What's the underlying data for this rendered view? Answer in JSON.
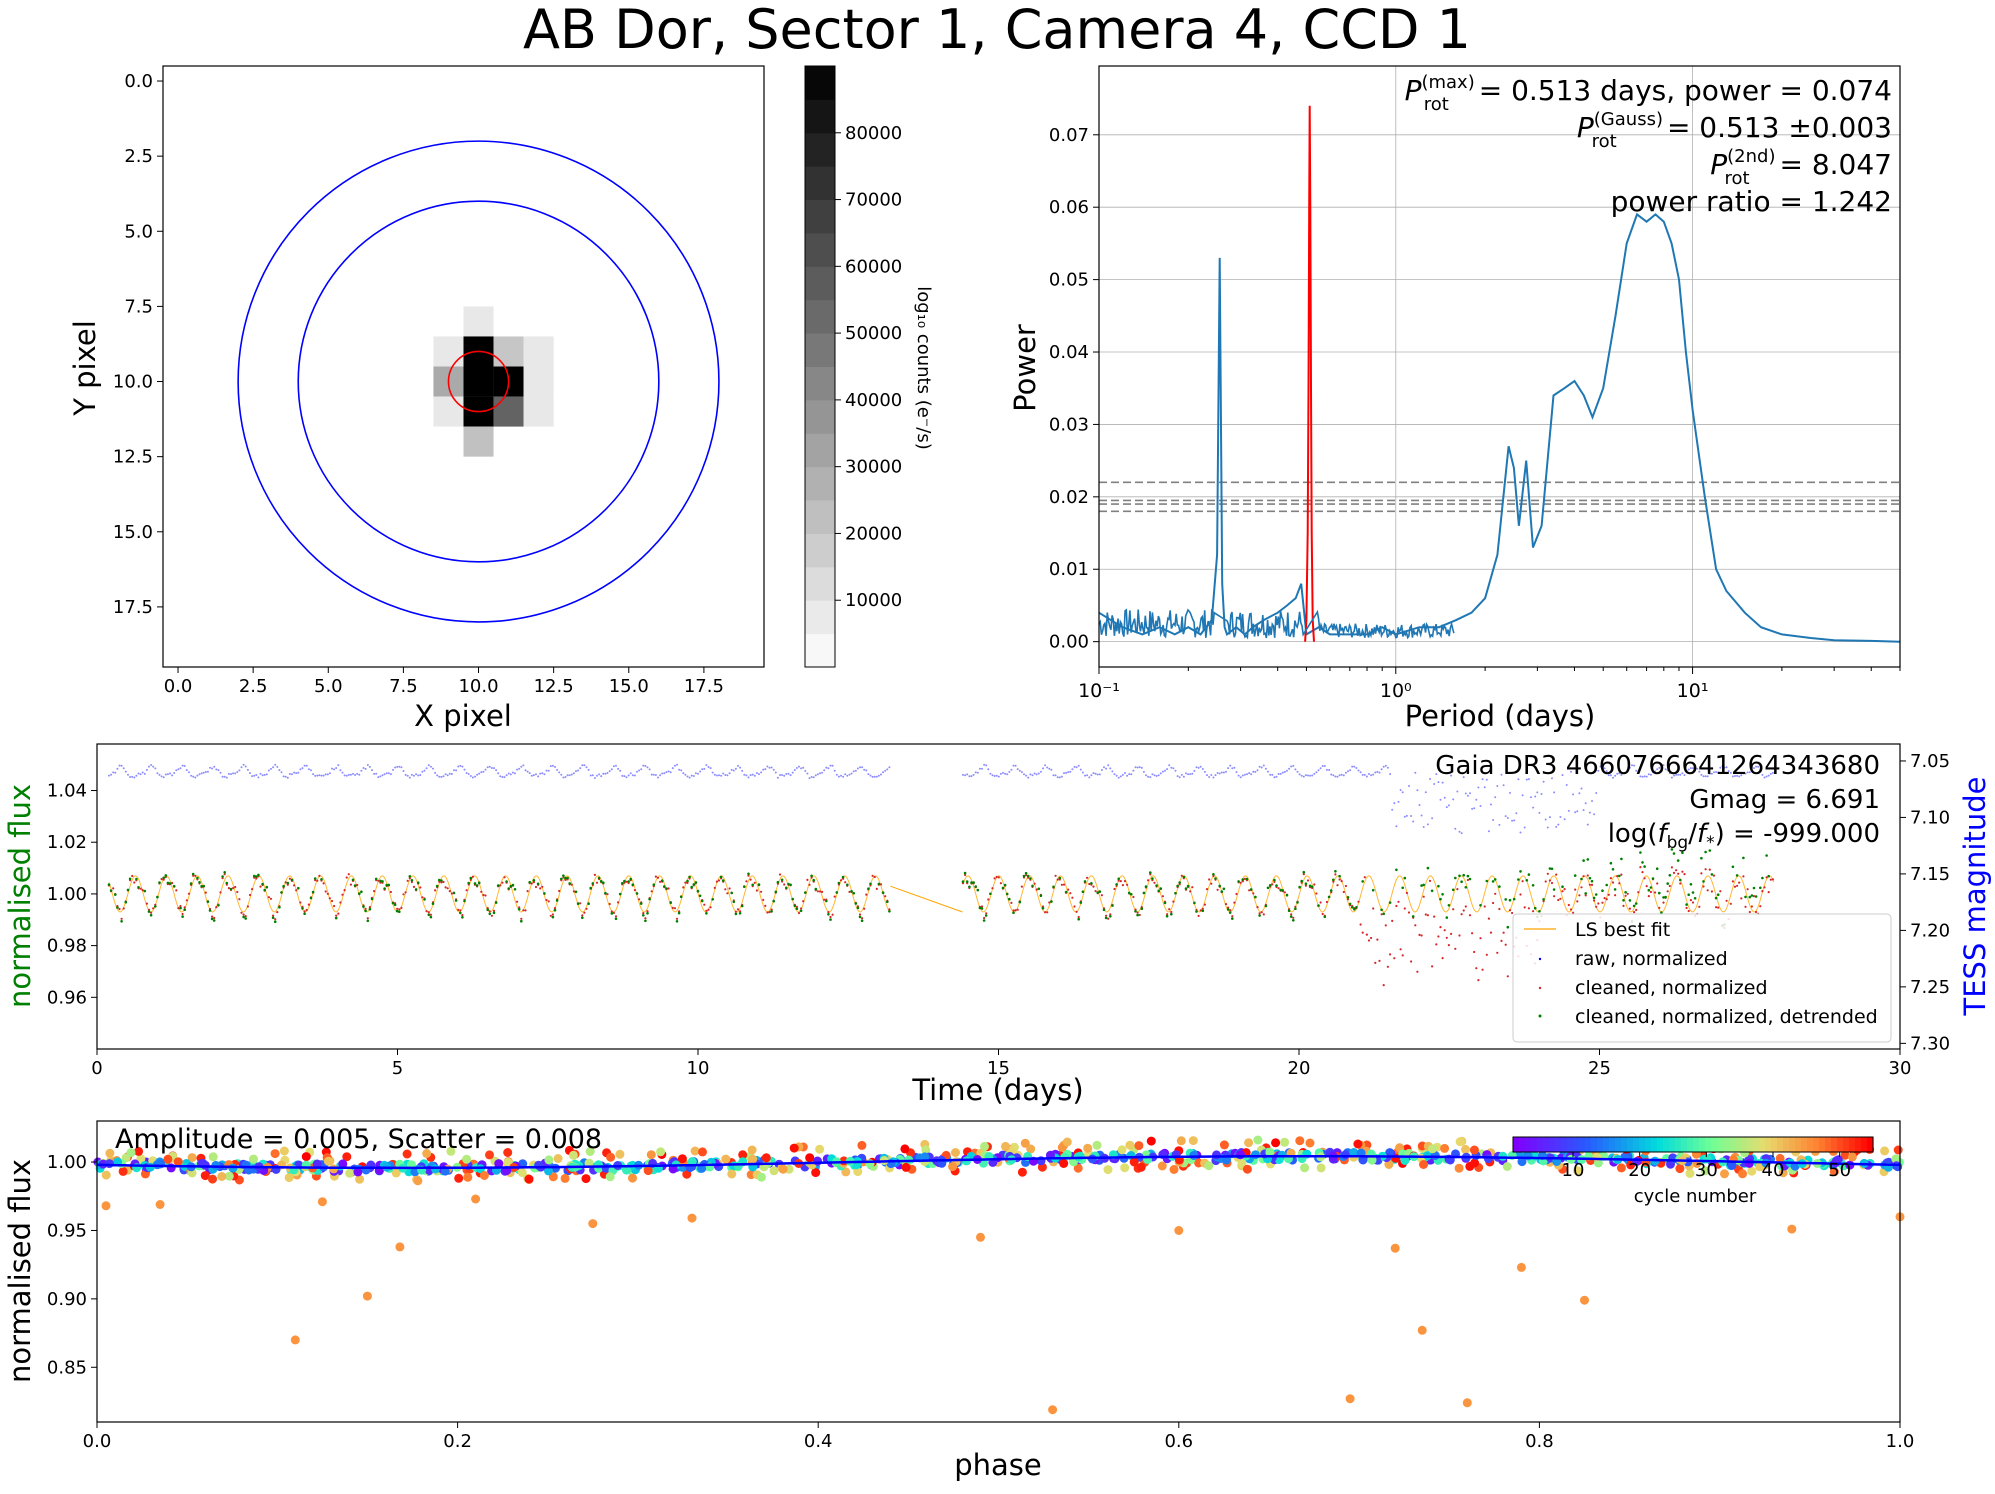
{
  "figure": {
    "title": "AB Dor, Sector 1, Camera 4, CCD 1"
  },
  "image_panel": {
    "xlabel": "X pixel",
    "ylabel": "Y pixel",
    "x_ticks": [
      "0.0",
      "2.5",
      "5.0",
      "7.5",
      "10.0",
      "12.5",
      "15.0",
      "17.5"
    ],
    "y_ticks": [
      "0.0",
      "2.5",
      "5.0",
      "7.5",
      "10.0",
      "12.5",
      "15.0",
      "17.5"
    ],
    "colorbar_label": "log₁₀ counts (e⁻/s)",
    "colorbar_ticks": [
      "10000",
      "20000",
      "30000",
      "40000",
      "50000",
      "60000",
      "70000",
      "80000"
    ],
    "aperture_color": "#ff0000",
    "annulus_color": "#0000ff"
  },
  "periodogram": {
    "xlabel": "Period (days)",
    "ylabel": "Power",
    "y_ticks": [
      "0.00",
      "0.01",
      "0.02",
      "0.03",
      "0.04",
      "0.05",
      "0.06",
      "0.07"
    ],
    "x_ticks": [
      "10⁻¹",
      "10⁰",
      "10¹"
    ],
    "annotation_lines": [
      "P_rot(max) = 0.513 days, power = 0.074",
      "P_rot(Gauss) = 0.513 ±0.003",
      "P_rot(2nd) = 8.047",
      "power ratio = 1.242"
    ]
  },
  "lightcurve": {
    "xlabel": "Time (days)",
    "ylabel_left": "normalised flux",
    "ylabel_right": "TESS magnitude",
    "x_ticks": [
      "0",
      "5",
      "10",
      "15",
      "20",
      "25",
      "30"
    ],
    "y_ticks_left": [
      "0.96",
      "0.98",
      "1.00",
      "1.02",
      "1.04"
    ],
    "y_ticks_right": [
      "7.05",
      "7.10",
      "7.15",
      "7.20",
      "7.25",
      "7.30"
    ],
    "info_lines": [
      "Gaia DR3 4660766641264343680",
      "Gmag = 6.691",
      "log(f_bg/f_*) = -999.000"
    ],
    "legend": [
      "LS best fit",
      "raw, normalized",
      "cleaned, normalized",
      "cleaned, normalized, detrended"
    ],
    "left_label_color": "#008000",
    "right_label_color": "#0000ff"
  },
  "phase_panel": {
    "xlabel": "phase",
    "ylabel": "normalised flux",
    "x_ticks": [
      "0.0",
      "0.2",
      "0.4",
      "0.6",
      "0.8",
      "1.0"
    ],
    "y_ticks": [
      "0.85",
      "0.90",
      "0.95",
      "1.00"
    ],
    "amplitude_text": "Amplitude = 0.005, Scatter = 0.008",
    "colorbar_label": "cycle number",
    "colorbar_ticks": [
      "10",
      "20",
      "30",
      "40",
      "50"
    ]
  },
  "chart_data": [
    {
      "type": "heatmap",
      "title": "",
      "xlabel": "X pixel",
      "ylabel": "Y pixel",
      "xlim": [
        -0.5,
        19.5
      ],
      "ylim": [
        19.5,
        -0.5
      ],
      "colorbar_range": [
        0,
        90000
      ],
      "pixels": [
        {
          "x": 10,
          "y": 8,
          "value": 8000
        },
        {
          "x": 9,
          "y": 9,
          "value": 8000
        },
        {
          "x": 10,
          "y": 9,
          "value": 90000
        },
        {
          "x": 11,
          "y": 9,
          "value": 20000
        },
        {
          "x": 12,
          "y": 9,
          "value": 8000
        },
        {
          "x": 9,
          "y": 10,
          "value": 30000
        },
        {
          "x": 10,
          "y": 10,
          "value": 90000
        },
        {
          "x": 11,
          "y": 10,
          "value": 90000
        },
        {
          "x": 12,
          "y": 10,
          "value": 8000
        },
        {
          "x": 9,
          "y": 11,
          "value": 8000
        },
        {
          "x": 10,
          "y": 11,
          "value": 90000
        },
        {
          "x": 11,
          "y": 11,
          "value": 55000
        },
        {
          "x": 12,
          "y": 11,
          "value": 8000
        },
        {
          "x": 10,
          "y": 12,
          "value": 22000
        }
      ],
      "aperture": {
        "center": [
          10,
          10
        ],
        "radius": 1
      },
      "annulus": {
        "center": [
          10,
          10
        ],
        "inner_radius": 6,
        "outer_radius": 8
      }
    },
    {
      "type": "line",
      "title": "",
      "xlabel": "Period (days)",
      "ylabel": "Power",
      "xscale": "log",
      "xlim": [
        0.1,
        50
      ],
      "ylim": [
        -0.0035,
        0.0795
      ],
      "grid": true,
      "series": [
        {
          "x": [
            0.1,
            0.12,
            0.14,
            0.16,
            0.18,
            0.2,
            0.22,
            0.24,
            0.25,
            0.255,
            0.26,
            0.265,
            0.27,
            0.29,
            0.31,
            0.33,
            0.36,
            0.4,
            0.43,
            0.46,
            0.48,
            0.5,
            0.55,
            0.6,
            0.7,
            0.8,
            0.9,
            1.0,
            1.2,
            1.4,
            1.6,
            1.8,
            2.0,
            2.2,
            2.4,
            2.5,
            2.6,
            2.75,
            2.9,
            3.1,
            3.4,
            3.7,
            4.0,
            4.3,
            4.6,
            5.0,
            5.5,
            6.0,
            6.5,
            7.0,
            7.5,
            8.0,
            8.5,
            9.0,
            9.5,
            10,
            11,
            12,
            13,
            15,
            17,
            20,
            25,
            30,
            40,
            50
          ],
          "values": [
            0.004,
            0.002,
            0.001,
            0.002,
            0.001,
            0.002,
            0.001,
            0.003,
            0.012,
            0.053,
            0.008,
            0.002,
            0.001,
            0.002,
            0.001,
            0.002,
            0.003,
            0.004,
            0.005,
            0.006,
            0.008,
            0.001,
            0.002,
            0.001,
            0.001,
            0.001,
            0.002,
            0.001,
            0.002,
            0.002,
            0.003,
            0.004,
            0.006,
            0.012,
            0.027,
            0.024,
            0.016,
            0.025,
            0.013,
            0.016,
            0.034,
            0.035,
            0.036,
            0.034,
            0.031,
            0.035,
            0.045,
            0.055,
            0.059,
            0.058,
            0.059,
            0.058,
            0.055,
            0.05,
            0.04,
            0.032,
            0.02,
            0.01,
            0.007,
            0.004,
            0.002,
            0.001,
            0.0005,
            0.0002,
            0.0001,
            0.0
          ],
          "color": "#1f77b4"
        },
        {
          "x": [
            0.495,
            0.5,
            0.505,
            0.508,
            0.511,
            0.513,
            0.515,
            0.518,
            0.521,
            0.525,
            0.53
          ],
          "values": [
            0.0,
            0.003,
            0.015,
            0.035,
            0.06,
            0.074,
            0.06,
            0.035,
            0.015,
            0.003,
            0.0
          ],
          "color": "#ff0000"
        }
      ],
      "hlines": [
        0.018,
        0.019,
        0.0195,
        0.022
      ]
    },
    {
      "type": "scatter",
      "title": "",
      "xlabel": "Time (days)",
      "ylabel": "normalised flux",
      "y2label": "TESS magnitude",
      "xlim": [
        0,
        30
      ],
      "ylim": [
        0.94,
        1.058
      ],
      "y2lim": [
        7.305,
        7.035
      ],
      "period_days": 0.513,
      "segments": [
        [
          0.2,
          13.2
        ],
        [
          14.4,
          27.9
        ]
      ],
      "series": [
        {
          "name": "LS best fit",
          "color": "#ffa500",
          "amplitude": 0.007
        },
        {
          "name": "raw, normalized",
          "color": "#0000ff",
          "baseline_mag": 7.06
        },
        {
          "name": "cleaned, normalized",
          "color": "#d62728",
          "amplitude": 0.008
        },
        {
          "name": "cleaned, normalized, detrended",
          "color": "#008000",
          "amplitude": 0.009
        }
      ]
    },
    {
      "type": "scatter",
      "title": "",
      "xlabel": "phase",
      "ylabel": "normalised flux",
      "xlim": [
        0,
        1
      ],
      "ylim": [
        0.81,
        1.03
      ],
      "amplitude": 0.005,
      "scatter": 0.008,
      "cycle_range": [
        1,
        55
      ],
      "outliers": [
        {
          "x": 0.005,
          "y": 0.968
        },
        {
          "x": 0.035,
          "y": 0.969
        },
        {
          "x": 0.11,
          "y": 0.87
        },
        {
          "x": 0.125,
          "y": 0.971
        },
        {
          "x": 0.15,
          "y": 0.902
        },
        {
          "x": 0.168,
          "y": 0.938
        },
        {
          "x": 0.21,
          "y": 0.973
        },
        {
          "x": 0.275,
          "y": 0.955
        },
        {
          "x": 0.33,
          "y": 0.959
        },
        {
          "x": 0.49,
          "y": 0.945
        },
        {
          "x": 0.53,
          "y": 0.819
        },
        {
          "x": 0.6,
          "y": 0.95
        },
        {
          "x": 0.695,
          "y": 0.827
        },
        {
          "x": 0.72,
          "y": 0.937
        },
        {
          "x": 0.735,
          "y": 0.877
        },
        {
          "x": 0.76,
          "y": 0.824
        },
        {
          "x": 0.79,
          "y": 0.923
        },
        {
          "x": 0.825,
          "y": 0.899
        },
        {
          "x": 0.94,
          "y": 0.951
        },
        {
          "x": 1.0,
          "y": 0.96
        }
      ]
    }
  ]
}
